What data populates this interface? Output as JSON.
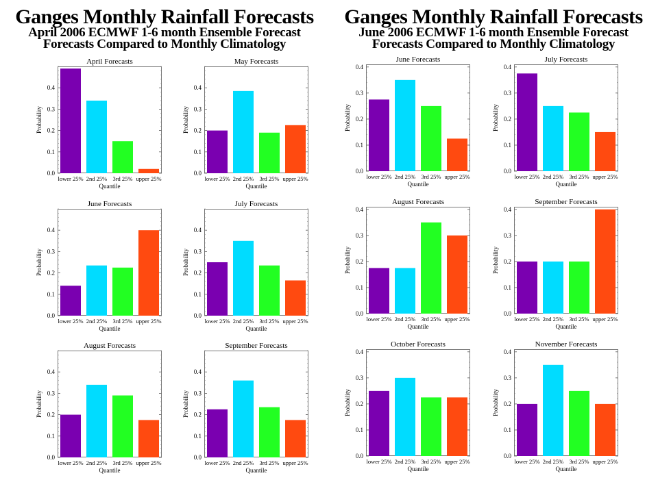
{
  "panels": [
    {
      "title": "Ganges Monthly Rainfall Forecasts",
      "subtitle1": "April 2006 ECMWF 1-6 month Ensemble Forecast",
      "subtitle2": "Forecasts Compared to Monthly Climatology"
    },
    {
      "title": "Ganges Monthly Rainfall Forecasts",
      "subtitle1": "June 2006 ECMWF 1-6 month Ensemble Forecast",
      "subtitle2": "Forecasts Compared to Monthly Climatology"
    }
  ],
  "colors": {
    "lower 25%": "#7a00b0",
    "2nd 25%": "#00dcff",
    "3rd 25%": "#22ff22",
    "upper 25%": "#ff4a10"
  },
  "chart_data": [
    {
      "type": "bar",
      "title": "April Forecasts",
      "categories": [
        "lower 25%",
        "2nd 25%",
        "3rd 25%",
        "upper 25%"
      ],
      "values": [
        0.49,
        0.34,
        0.15,
        0.02
      ],
      "xlabel": "Quantile",
      "ylabel": "Probability",
      "ylim": [
        0,
        0.5
      ],
      "yticks": [
        "0.0",
        "0.1",
        "0.2",
        "0.3",
        "0.4"
      ]
    },
    {
      "type": "bar",
      "title": "May Forecasts",
      "categories": [
        "lower 25%",
        "2nd 25%",
        "3rd 25%",
        "upper 25%"
      ],
      "values": [
        0.2,
        0.385,
        0.19,
        0.225
      ],
      "xlabel": "Quantile",
      "ylabel": "Probability",
      "ylim": [
        0,
        0.5
      ],
      "yticks": [
        "0.0",
        "0.1",
        "0.2",
        "0.3",
        "0.4"
      ]
    },
    {
      "type": "bar",
      "title": "June Forecasts",
      "categories": [
        "lower 25%",
        "2nd 25%",
        "3rd 25%",
        "upper 25%"
      ],
      "values": [
        0.14,
        0.235,
        0.225,
        0.4
      ],
      "xlabel": "Quantile",
      "ylabel": "Probability",
      "ylim": [
        0,
        0.5
      ],
      "yticks": [
        "0.0",
        "0.1",
        "0.2",
        "0.3",
        "0.4"
      ]
    },
    {
      "type": "bar",
      "title": "July Forecasts",
      "categories": [
        "lower 25%",
        "2nd 25%",
        "3rd 25%",
        "upper 25%"
      ],
      "values": [
        0.25,
        0.35,
        0.235,
        0.165
      ],
      "xlabel": "Quantile",
      "ylabel": "Probability",
      "ylim": [
        0,
        0.5
      ],
      "yticks": [
        "0.0",
        "0.1",
        "0.2",
        "0.3",
        "0.4"
      ]
    },
    {
      "type": "bar",
      "title": "August Forecasts",
      "categories": [
        "lower 25%",
        "2nd 25%",
        "3rd 25%",
        "upper 25%"
      ],
      "values": [
        0.2,
        0.34,
        0.29,
        0.175
      ],
      "xlabel": "Quantile",
      "ylabel": "Probability",
      "ylim": [
        0,
        0.5
      ],
      "yticks": [
        "0.0",
        "0.1",
        "0.2",
        "0.3",
        "0.4"
      ]
    },
    {
      "type": "bar",
      "title": "September Forecasts",
      "categories": [
        "lower 25%",
        "2nd 25%",
        "3rd 25%",
        "upper 25%"
      ],
      "values": [
        0.225,
        0.36,
        0.235,
        0.175
      ],
      "xlabel": "Quantile",
      "ylabel": "Probability",
      "ylim": [
        0,
        0.5
      ],
      "yticks": [
        "0.0",
        "0.1",
        "0.2",
        "0.3",
        "0.4"
      ]
    },
    {
      "type": "bar",
      "title": "June Forecasts",
      "categories": [
        "lower 25%",
        "2nd 25%",
        "3rd 25%",
        "upper 25%"
      ],
      "values": [
        0.275,
        0.35,
        0.25,
        0.125
      ],
      "xlabel": "Quantile",
      "ylabel": "Probability",
      "ylim": [
        0,
        0.41
      ],
      "yticks": [
        "0.0",
        "0.1",
        "0.2",
        "0.3",
        "0.4"
      ]
    },
    {
      "type": "bar",
      "title": "July Forecasts",
      "categories": [
        "lower 25%",
        "2nd 25%",
        "3rd 25%",
        "upper 25%"
      ],
      "values": [
        0.375,
        0.25,
        0.225,
        0.15
      ],
      "xlabel": "Quantile",
      "ylabel": "Probability",
      "ylim": [
        0,
        0.41
      ],
      "yticks": [
        "0.0",
        "0.1",
        "0.2",
        "0.3",
        "0.4"
      ]
    },
    {
      "type": "bar",
      "title": "August Forecasts",
      "categories": [
        "lower 25%",
        "2nd 25%",
        "3rd 25%",
        "upper 25%"
      ],
      "values": [
        0.175,
        0.175,
        0.35,
        0.3
      ],
      "xlabel": "Quantile",
      "ylabel": "Probability",
      "ylim": [
        0,
        0.41
      ],
      "yticks": [
        "0.0",
        "0.1",
        "0.2",
        "0.3",
        "0.4"
      ]
    },
    {
      "type": "bar",
      "title": "September Forecasts",
      "categories": [
        "lower 25%",
        "2nd 25%",
        "3rd 25%",
        "upper 25%"
      ],
      "values": [
        0.2,
        0.2,
        0.2,
        0.4
      ],
      "xlabel": "Quantile",
      "ylabel": "Probability",
      "ylim": [
        0,
        0.41
      ],
      "yticks": [
        "0.0",
        "0.1",
        "0.2",
        "0.3",
        "0.4"
      ]
    },
    {
      "type": "bar",
      "title": "October Forecasts",
      "categories": [
        "lower 25%",
        "2nd 25%",
        "3rd 25%",
        "upper 25%"
      ],
      "values": [
        0.25,
        0.3,
        0.225,
        0.225
      ],
      "xlabel": "Quantile",
      "ylabel": "Probability",
      "ylim": [
        0,
        0.41
      ],
      "yticks": [
        "0.0",
        "0.1",
        "0.2",
        "0.3",
        "0.4"
      ]
    },
    {
      "type": "bar",
      "title": "November Forecasts",
      "categories": [
        "lower 25%",
        "2nd 25%",
        "3rd 25%",
        "upper 25%"
      ],
      "values": [
        0.2,
        0.35,
        0.25,
        0.2
      ],
      "xlabel": "Quantile",
      "ylabel": "Probability",
      "ylim": [
        0,
        0.41
      ],
      "yticks": [
        "0.0",
        "0.1",
        "0.2",
        "0.3",
        "0.4"
      ]
    }
  ]
}
